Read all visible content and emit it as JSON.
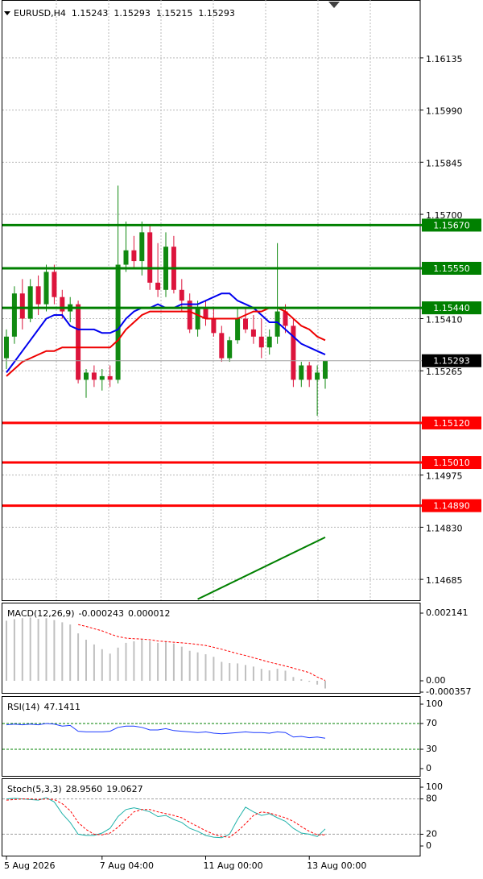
{
  "chart_data": [
    {
      "type": "candlestick",
      "symbol": "EURUSD,H4",
      "categories": [
        "5 Aug 2026",
        null,
        null,
        null,
        null,
        null,
        null,
        null,
        null,
        null,
        null,
        null,
        "7 Aug 04:00",
        null,
        null,
        null,
        null,
        null,
        null,
        null,
        null,
        null,
        null,
        null,
        null,
        "11 Aug 00:00",
        null,
        null,
        null,
        null,
        null,
        null,
        null,
        null,
        null,
        null,
        null,
        null,
        "13 Aug 00:00",
        null,
        null
      ],
      "open": [
        1.153,
        1.1536,
        1.1548,
        1.1541,
        1.155,
        1.1545,
        1.1554,
        1.1547,
        1.1543,
        1.1545,
        1.1524,
        1.1526,
        1.1524,
        1.1525,
        1.1524,
        1.1556,
        1.156,
        1.1557,
        1.1565,
        1.1551,
        1.1549,
        1.1561,
        1.1549,
        1.1546,
        1.1538,
        1.1544,
        1.1541,
        1.1537,
        1.153,
        1.1535,
        1.1541,
        1.1538,
        1.1536,
        1.1533,
        1.1536,
        1.1543,
        1.1539,
        1.1524,
        1.1528,
        1.1524,
        1.15243
      ],
      "high": [
        1.1538,
        1.155,
        1.1552,
        1.1552,
        1.1553,
        1.1556,
        1.1556,
        1.1549,
        1.1547,
        1.1546,
        1.1527,
        1.1528,
        1.1527,
        1.1528,
        1.1578,
        1.1568,
        1.1564,
        1.1568,
        1.1567,
        1.1562,
        1.1565,
        1.1564,
        1.1552,
        1.1548,
        1.1546,
        1.1546,
        1.1544,
        1.1539,
        1.1536,
        1.1544,
        1.1544,
        1.1542,
        1.1541,
        1.1538,
        1.1562,
        1.1545,
        1.1541,
        1.1529,
        1.1529,
        1.1528,
        1.15293
      ],
      "low": [
        1.1527,
        1.1534,
        1.1538,
        1.154,
        1.1542,
        1.1543,
        1.1545,
        1.1541,
        1.154,
        1.1523,
        1.1519,
        1.1522,
        1.1521,
        1.1522,
        1.1523,
        1.1554,
        1.1555,
        1.1553,
        1.1549,
        1.1547,
        1.1547,
        1.1548,
        1.1543,
        1.1537,
        1.1536,
        1.1539,
        1.1536,
        1.1529,
        1.1529,
        1.1534,
        1.1537,
        1.1534,
        1.153,
        1.1531,
        1.1534,
        1.1537,
        1.1522,
        1.1522,
        1.1522,
        1.1514,
        1.15215
      ],
      "close": [
        1.1536,
        1.1548,
        1.1541,
        1.155,
        1.1545,
        1.1554,
        1.1547,
        1.1543,
        1.1545,
        1.1524,
        1.1526,
        1.1524,
        1.1525,
        1.1524,
        1.1556,
        1.156,
        1.1557,
        1.1565,
        1.1551,
        1.1549,
        1.1561,
        1.1549,
        1.1546,
        1.1538,
        1.1544,
        1.1541,
        1.1537,
        1.153,
        1.1535,
        1.1541,
        1.1538,
        1.1536,
        1.1533,
        1.1536,
        1.1543,
        1.1539,
        1.1524,
        1.1528,
        1.1524,
        1.1526,
        1.15293
      ],
      "up_color": "#118a11",
      "down_color": "#dc143c",
      "lines": [
        {
          "color": "#0000ee",
          "values": [
            1.1526,
            1.1529,
            1.1532,
            1.1535,
            1.1538,
            1.1541,
            1.1542,
            1.1542,
            1.1539,
            1.1538,
            1.1538,
            1.1538,
            1.1537,
            1.1537,
            1.1538,
            1.1541,
            1.1543,
            1.1544,
            1.1544,
            1.1545,
            1.1544,
            1.1544,
            1.1545,
            1.1545,
            1.1545,
            1.1546,
            1.1547,
            1.1548,
            1.1548,
            1.1546,
            1.1545,
            1.1544,
            1.1542,
            1.154,
            1.154,
            1.1538,
            1.1536,
            1.1534,
            1.1533,
            1.1532,
            1.1531
          ]
        },
        {
          "color": "#ee0000",
          "values": [
            1.1525,
            1.1527,
            1.1529,
            1.153,
            1.1531,
            1.1532,
            1.1532,
            1.1533,
            1.1533,
            1.1533,
            1.1533,
            1.1533,
            1.1533,
            1.1533,
            1.1535,
            1.1538,
            1.154,
            1.1542,
            1.1543,
            1.1543,
            1.1543,
            1.1543,
            1.1543,
            1.1543,
            1.1542,
            1.1541,
            1.1541,
            1.1541,
            1.1541,
            1.1541,
            1.1542,
            1.1543,
            1.1543,
            1.1544,
            1.1544,
            1.1543,
            1.1541,
            1.1539,
            1.1538,
            1.1536,
            1.1535
          ]
        }
      ],
      "levels": [
        {
          "value": 1.1567,
          "label": "1.15670",
          "color": "#008000"
        },
        {
          "value": 1.1555,
          "label": "1.15550",
          "color": "#008000"
        },
        {
          "value": 1.1544,
          "label": "1.15440",
          "color": "#008000"
        },
        {
          "value": 1.1512,
          "label": "1.15120",
          "color": "#ff0000"
        },
        {
          "value": 1.1501,
          "label": "1.15010",
          "color": "#ff0000"
        },
        {
          "value": 1.1489,
          "label": "1.14890",
          "color": "#ff0000"
        }
      ],
      "trendline": {
        "color": "#008000",
        "x": [
          24,
          40
        ],
        "y": [
          1.1463,
          1.14802
        ]
      },
      "ylim": [
        1.14627,
        1.16296
      ],
      "yticks": [
        1.16135,
        {
          "value": 1.1599,
          "label": "1.15990"
        },
        1.15845,
        {
          "value": 1.157,
          "label": "1.15700"
        },
        {
          "value": 1.1541,
          "label": "1.15410"
        },
        1.15265,
        1.14975,
        {
          "value": 1.1483,
          "label": "1.14830"
        },
        1.14685
      ],
      "grid": true
    },
    {
      "type": "indicator",
      "title": "MACD(12,26,9)",
      "series": [
        {
          "style": "histogram",
          "color": "#c0c0c0",
          "values": [
            0.0019,
            0.00195,
            0.00198,
            0.002,
            0.00196,
            0.00198,
            0.00192,
            0.00185,
            0.00178,
            0.0015,
            0.0013,
            0.00115,
            0.001,
            0.00086,
            0.00105,
            0.0012,
            0.00125,
            0.00132,
            0.00126,
            0.0012,
            0.00124,
            0.00118,
            0.00108,
            0.00095,
            0.0009,
            0.00084,
            0.00076,
            0.0006,
            0.00056,
            0.00055,
            0.0005,
            0.00045,
            0.00038,
            0.00033,
            0.00038,
            0.00032,
            0.00012,
            5e-05,
            -3e-05,
            -0.00012,
            -0.000243
          ]
        },
        {
          "style": "dashed",
          "color": "#ff0000",
          "values": [
            null,
            null,
            null,
            null,
            null,
            null,
            null,
            null,
            null,
            0.00178,
            0.00172,
            0.00165,
            0.00158,
            0.00148,
            0.0014,
            0.00135,
            0.00133,
            0.00132,
            0.0013,
            0.00126,
            0.00124,
            0.00122,
            0.0012,
            0.00118,
            0.00115,
            0.00112,
            0.00106,
            0.001,
            0.00093,
            0.00086,
            0.0008,
            0.00073,
            0.00066,
            0.00059,
            0.00053,
            0.00047,
            0.0004,
            0.00033,
            0.00026,
            0.00012,
            1.2e-05
          ]
        }
      ],
      "ylim": [
        -0.000382,
        0.002472
      ],
      "yticks": [
        0.002141,
        {
          "value": 0,
          "label": "0.00"
        },
        -0.000357
      ]
    },
    {
      "type": "indicator",
      "title": "RSI(14)",
      "series": [
        {
          "style": "line",
          "color": "#1e3cff",
          "values": [
            68,
            69,
            68,
            69,
            68,
            70,
            69,
            66,
            67,
            58,
            57,
            57,
            57,
            58,
            64,
            66,
            66,
            64,
            60,
            60,
            62,
            59,
            58,
            57,
            56,
            57,
            55,
            54,
            55,
            56,
            57,
            56,
            56,
            55,
            57,
            56,
            49,
            50,
            48,
            49,
            47.1411
          ]
        }
      ],
      "levels": [
        {
          "value": 70,
          "color": "#008000"
        },
        {
          "value": 30,
          "color": "#008000"
        }
      ],
      "ylim": [
        -11.25,
        112.5
      ],
      "yticks": [
        100,
        70,
        30,
        0
      ]
    },
    {
      "type": "indicator",
      "title": "Stoch(5,3,3)",
      "series": [
        {
          "style": "line",
          "color": "#20b2aa",
          "values": [
            80,
            81,
            80,
            79,
            78,
            82,
            75,
            55,
            40,
            20,
            18,
            18,
            22,
            30,
            50,
            62,
            65,
            62,
            58,
            50,
            52,
            45,
            40,
            30,
            25,
            18,
            15,
            14,
            20,
            45,
            66,
            58,
            52,
            55,
            48,
            42,
            30,
            22,
            20,
            16,
            28.956
          ],
          "value_labels": [
            null,
            null,
            null,
            null,
            null,
            null,
            null,
            null,
            null,
            null,
            null,
            null,
            null,
            null,
            null,
            null,
            null,
            null,
            null,
            null,
            null,
            null,
            null,
            null,
            null,
            null,
            null,
            null,
            null,
            null,
            null,
            null,
            null,
            null,
            null,
            null,
            null,
            null,
            null,
            null,
            "28.9560"
          ]
        },
        {
          "style": "dashed",
          "color": "#ff0000",
          "values": [
            78,
            79,
            80,
            80,
            79,
            80,
            79,
            72,
            60,
            40,
            28,
            20,
            19,
            22,
            32,
            45,
            58,
            62,
            62,
            58,
            55,
            52,
            48,
            40,
            33,
            26,
            20,
            16,
            15,
            25,
            38,
            52,
            58,
            56,
            52,
            48,
            42,
            33,
            25,
            19,
            19.0627
          ]
        }
      ],
      "levels": [
        {
          "value": 80,
          "color": "#a0a0a0"
        },
        {
          "value": 20,
          "color": "#a0a0a0"
        }
      ],
      "ylim": [
        -16.4,
        115.1
      ],
      "yticks": [
        100,
        80,
        20,
        0
      ]
    }
  ]
}
